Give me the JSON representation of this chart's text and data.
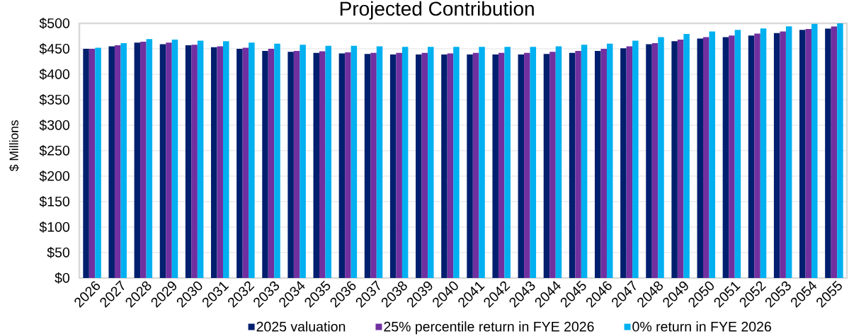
{
  "chart_data": {
    "type": "bar",
    "title": "Projected Contribution",
    "ylabel": "$ Millions",
    "categories": [
      "2026",
      "2027",
      "2028",
      "2029",
      "2030",
      "2031",
      "2032",
      "2033",
      "2034",
      "2035",
      "2036",
      "2037",
      "2038",
      "2039",
      "2040",
      "2041",
      "2042",
      "2043",
      "2044",
      "2045",
      "2046",
      "2047",
      "2048",
      "2049",
      "2050",
      "2051",
      "2052",
      "2053",
      "2054",
      "2055"
    ],
    "series": [
      {
        "name": "2025 valuation",
        "color": "#001F6E",
        "values": [
          450,
          455,
          462,
          459,
          457,
          453,
          450,
          446,
          444,
          442,
          441,
          440,
          439,
          439,
          439,
          439,
          439,
          439,
          440,
          442,
          446,
          451,
          459,
          465,
          470,
          473,
          476,
          481,
          487,
          490
        ]
      },
      {
        "name": "25% percentile return in FYE 2026",
        "color": "#7030A0",
        "values": [
          450,
          457,
          464,
          462,
          458,
          455,
          452,
          450,
          446,
          445,
          443,
          442,
          442,
          442,
          441,
          442,
          442,
          442,
          444,
          446,
          450,
          455,
          461,
          468,
          473,
          476,
          480,
          484,
          489,
          494
        ]
      },
      {
        "name": "0% return in FYE 2026",
        "color": "#00B0F0",
        "values": [
          452,
          461,
          469,
          468,
          466,
          465,
          462,
          460,
          458,
          456,
          456,
          455,
          454,
          454,
          454,
          454,
          454,
          454,
          455,
          458,
          460,
          466,
          473,
          479,
          484,
          487,
          490,
          494,
          499,
          500
        ]
      }
    ],
    "ylim": [
      0,
      500
    ],
    "yticks": [
      {
        "value": 0,
        "label": "$0"
      },
      {
        "value": 50,
        "label": "$50"
      },
      {
        "value": 100,
        "label": "$100"
      },
      {
        "value": 150,
        "label": "$150"
      },
      {
        "value": 200,
        "label": "$200"
      },
      {
        "value": 250,
        "label": "$250"
      },
      {
        "value": 300,
        "label": "$300"
      },
      {
        "value": 350,
        "label": "$350"
      },
      {
        "value": 400,
        "label": "$400"
      },
      {
        "value": 450,
        "label": "$450"
      },
      {
        "value": 500,
        "label": "$500"
      }
    ],
    "grid": "y",
    "legend": "bottom"
  }
}
